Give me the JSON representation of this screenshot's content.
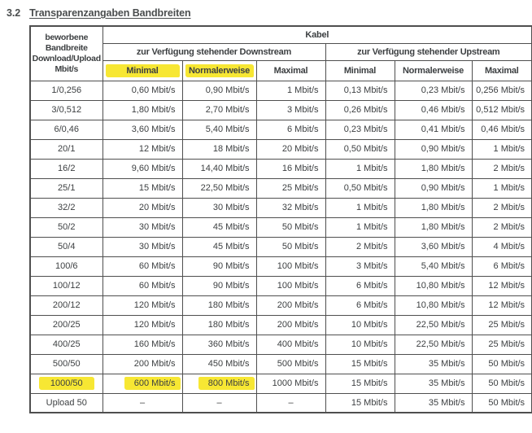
{
  "heading": {
    "number": "3.2",
    "title": "Transparenzangaben Bandbreiten"
  },
  "colors": {
    "highlight": "#f7e733",
    "border": "#4f4f4f",
    "text": "#3d4042"
  },
  "table": {
    "col1_header": "beworbene Bandbreite Download/Upload Mbit/s",
    "group_header": "Kabel",
    "downstream_header": "zur Verfügung stehender Downstream",
    "upstream_header": "zur Verfügung stehender Upstream",
    "sub_headers": [
      "Minimal",
      "Normalerweise",
      "Maximal",
      "Minimal",
      "Normalerweise",
      "Maximal"
    ],
    "subheader_highlights": [
      0,
      1
    ],
    "rows": [
      [
        "1/0,256",
        "0,60 Mbit/s",
        "0,90 Mbit/s",
        "1 Mbit/s",
        "0,13 Mbit/s",
        "0,23 Mbit/s",
        "0,256 Mbit/s"
      ],
      [
        "3/0,512",
        "1,80 Mbit/s",
        "2,70 Mbit/s",
        "3 Mbit/s",
        "0,26 Mbit/s",
        "0,46 Mbit/s",
        "0,512 Mbit/s"
      ],
      [
        "6/0,46",
        "3,60 Mbit/s",
        "5,40 Mbit/s",
        "6 Mbit/s",
        "0,23 Mbit/s",
        "0,41 Mbit/s",
        "0,46 Mbit/s"
      ],
      [
        "20/1",
        "12 Mbit/s",
        "18 Mbit/s",
        "20 Mbit/s",
        "0,50 Mbit/s",
        "0,90 Mbit/s",
        "1 Mbit/s"
      ],
      [
        "16/2",
        "9,60 Mbit/s",
        "14,40 Mbit/s",
        "16 Mbit/s",
        "1 Mbit/s",
        "1,80 Mbit/s",
        "2 Mbit/s"
      ],
      [
        "25/1",
        "15 Mbit/s",
        "22,50 Mbit/s",
        "25 Mbit/s",
        "0,50 Mbit/s",
        "0,90 Mbit/s",
        "1 Mbit/s"
      ],
      [
        "32/2",
        "20 Mbit/s",
        "30 Mbit/s",
        "32 Mbit/s",
        "1 Mbit/s",
        "1,80 Mbit/s",
        "2 Mbit/s"
      ],
      [
        "50/2",
        "30 Mbit/s",
        "45 Mbit/s",
        "50 Mbit/s",
        "1 Mbit/s",
        "1,80 Mbit/s",
        "2 Mbit/s"
      ],
      [
        "50/4",
        "30 Mbit/s",
        "45 Mbit/s",
        "50 Mbit/s",
        "2 Mbit/s",
        "3,60 Mbit/s",
        "4 Mbit/s"
      ],
      [
        "100/6",
        "60 Mbit/s",
        "90 Mbit/s",
        "100 Mbit/s",
        "3 Mbit/s",
        "5,40 Mbit/s",
        "6 Mbit/s"
      ],
      [
        "100/12",
        "60 Mbit/s",
        "90 Mbit/s",
        "100 Mbit/s",
        "6 Mbit/s",
        "10,80 Mbit/s",
        "12 Mbit/s"
      ],
      [
        "200/12",
        "120 Mbit/s",
        "180 Mbit/s",
        "200 Mbit/s",
        "6 Mbit/s",
        "10,80 Mbit/s",
        "12 Mbit/s"
      ],
      [
        "200/25",
        "120 Mbit/s",
        "180 Mbit/s",
        "200 Mbit/s",
        "10 Mbit/s",
        "22,50 Mbit/s",
        "25 Mbit/s"
      ],
      [
        "400/25",
        "160 Mbit/s",
        "360 Mbit/s",
        "400 Mbit/s",
        "10 Mbit/s",
        "22,50 Mbit/s",
        "25 Mbit/s"
      ],
      [
        "500/50",
        "200 Mbit/s",
        "450 Mbit/s",
        "500 Mbit/s",
        "15 Mbit/s",
        "35 Mbit/s",
        "50 Mbit/s"
      ],
      [
        "1000/50",
        "600 Mbit/s",
        "800 Mbit/s",
        "1000 Mbit/s",
        "15 Mbit/s",
        "35 Mbit/s",
        "50 Mbit/s"
      ],
      [
        "Upload 50",
        "–",
        "–",
        "–",
        "15 Mbit/s",
        "35 Mbit/s",
        "50 Mbit/s"
      ]
    ],
    "row_highlights": {
      "15": [
        0,
        1,
        2
      ]
    }
  }
}
